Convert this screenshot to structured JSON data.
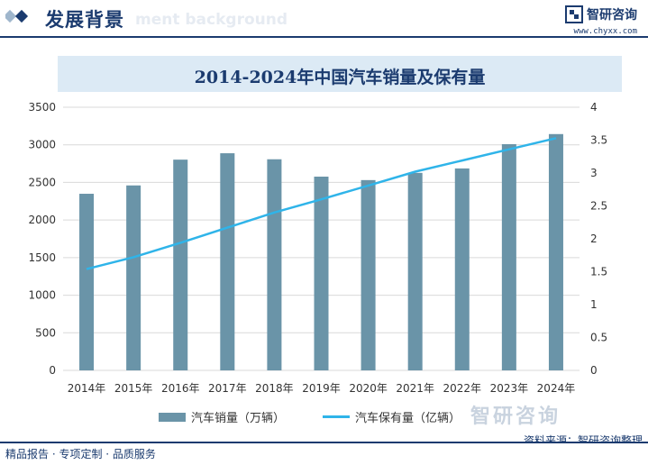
{
  "header": {
    "title": "发展背景",
    "watermark": "ment background",
    "brand_name": "智研咨询",
    "url": "www.chyxx.com"
  },
  "chart_data": {
    "type": "bar",
    "title": "2014-2024年中国汽车销量及保有量",
    "categories": [
      "2014年",
      "2015年",
      "2016年",
      "2017年",
      "2018年",
      "2019年",
      "2020年",
      "2021年",
      "2022年",
      "2023年",
      "2024年"
    ],
    "series": [
      {
        "name": "汽车销量（万辆）",
        "type": "bar",
        "axis": "left",
        "color": "#6a94a8",
        "values": [
          2349,
          2460,
          2803,
          2888,
          2808,
          2577,
          2531,
          2627,
          2686,
          3009,
          3143
        ]
      },
      {
        "name": "汽车保有量（亿辆）",
        "type": "line",
        "axis": "right",
        "color": "#2fb4e9",
        "values": [
          1.54,
          1.72,
          1.94,
          2.17,
          2.4,
          2.6,
          2.81,
          3.02,
          3.19,
          3.36,
          3.53
        ]
      }
    ],
    "y_left": {
      "min": 0,
      "max": 3500,
      "ticks": [
        "0",
        "500",
        "1000",
        "1500",
        "2000",
        "2500",
        "3000",
        "3500"
      ]
    },
    "y_right": {
      "min": 0,
      "max": 4,
      "ticks": [
        "0",
        "0.5",
        "1",
        "1.5",
        "2",
        "2.5",
        "3",
        "3.5",
        "4"
      ]
    },
    "grid": true,
    "legend_position": "bottom"
  },
  "footer": {
    "watermark": "智研咨询",
    "source": "资料来源：智研咨询整理",
    "tagline": "精品报告 · 专项定制 · 品质服务"
  }
}
